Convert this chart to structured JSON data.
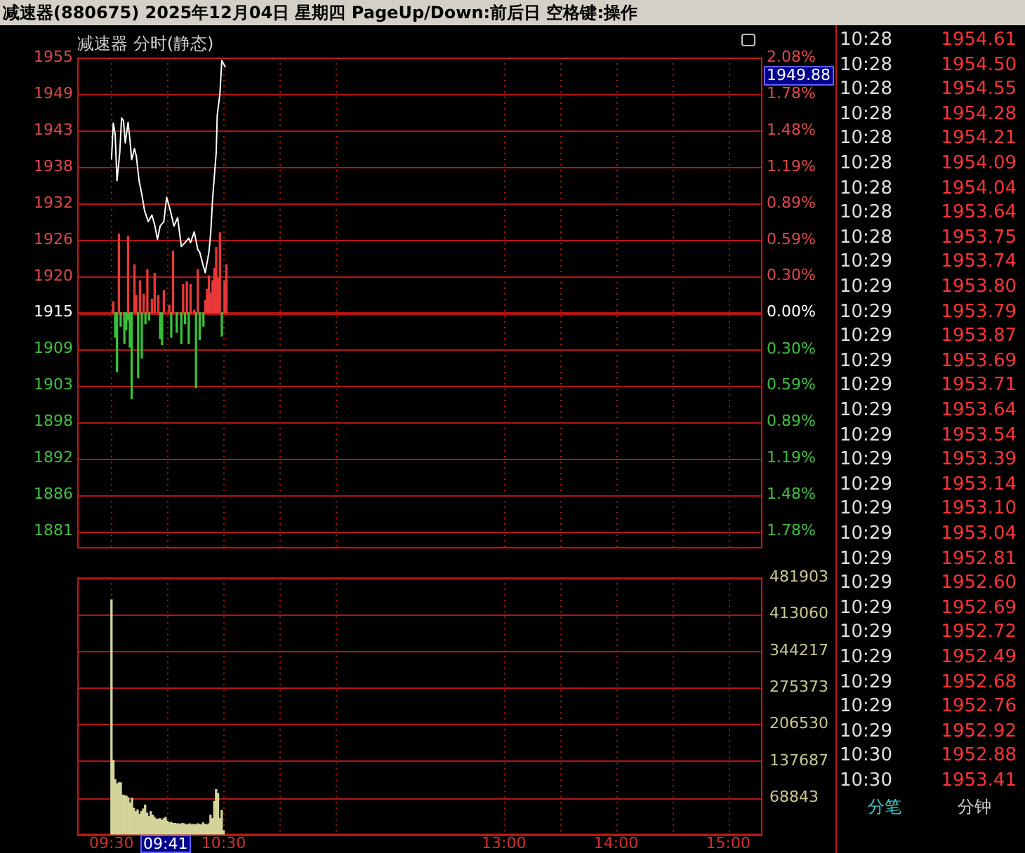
{
  "chart_data": [
    {
      "type": "line",
      "title": "减速器(880675) 2025年12月04日 星期四 PageUp/Down:前后日 空格键:操作",
      "subtitle": "减速器 分时(静态)",
      "xlim": [
        9.5,
        15
      ],
      "xticks": [
        {
          "value": 9.5,
          "label": null
        },
        {
          "value": 10,
          "label": null
        },
        {
          "value": 10.5,
          "label": null
        },
        {
          "value": 11,
          "label": null
        },
        {
          "value": 11.5,
          "label": null
        },
        {
          "value": 13,
          "label": null
        },
        {
          "value": 13.5,
          "label": null
        },
        {
          "value": 14,
          "label": null
        },
        {
          "value": 14.5,
          "label": null
        },
        {
          "value": 15,
          "label": null
        }
      ],
      "ylim": [
        1878,
        1954.65
      ],
      "yticks": [
        {
          "value": 1954.65,
          "label": "1955"
        },
        {
          "value": 1948.95,
          "label": "1949"
        },
        {
          "value": 1943.25,
          "label": "1943"
        },
        {
          "value": 1937.55,
          "label": "1938"
        },
        {
          "value": 1931.85,
          "label": "1932"
        },
        {
          "value": 1926.15,
          "label": "1926"
        },
        {
          "value": 1920.45,
          "label": "1920"
        },
        {
          "value": 1914.75,
          "label": "1915"
        },
        {
          "value": 1909.05,
          "label": "1909"
        },
        {
          "value": 1903.35,
          "label": "1903"
        },
        {
          "value": 1897.65,
          "label": "1898"
        },
        {
          "value": 1891.95,
          "label": "1892"
        },
        {
          "value": 1886.25,
          "label": "1886"
        },
        {
          "value": 1880.55,
          "label": "1881"
        }
      ],
      "y2lim": [
        -1.912,
        2.076
      ],
      "y2ticks": [
        {
          "value": 2.076,
          "label": "2.08%"
        },
        {
          "value": 1.78,
          "label": "1.78%"
        },
        {
          "value": 1.483,
          "label": "1.48%"
        },
        {
          "value": 1.186,
          "label": "1.19%"
        },
        {
          "value": 0.89,
          "label": "0.89%"
        },
        {
          "value": 0.593,
          "label": "0.59%"
        },
        {
          "value": 0.297,
          "label": "0.30%"
        },
        {
          "value": 0,
          "label": "0.00%"
        },
        {
          "value": -0.297,
          "label": "0.30%"
        },
        {
          "value": -0.593,
          "label": "0.59%"
        },
        {
          "value": -0.89,
          "label": "0.89%"
        },
        {
          "value": -1.186,
          "label": "1.19%"
        },
        {
          "value": -1.483,
          "label": "1.48%"
        },
        {
          "value": -1.78,
          "label": "1.78%"
        }
      ],
      "tick_labels": "y",
      "grid": true,
      "ref_lines": [
        {
          "axis": "y",
          "value": 1914.75,
          "color": "#b41414",
          "line_style": "solid"
        }
      ],
      "annotations": [
        "1949.88"
      ],
      "series": [
        {
          "type": "line",
          "color": "#ffffff",
          "x": [
            9.5,
            9.516,
            9.533,
            9.549,
            9.574,
            9.59,
            9.607,
            9.623,
            9.648,
            9.664,
            9.68,
            9.705,
            9.721,
            9.746,
            9.77,
            9.795,
            9.828,
            9.861,
            9.885,
            9.91,
            9.934,
            9.967,
            9.992,
            10.025,
            10.057,
            10.09,
            10.123,
            10.156,
            10.189,
            10.205,
            10.238,
            10.27,
            10.287,
            10.32,
            10.336,
            10.369,
            10.385,
            10.402,
            10.434,
            10.443,
            10.467,
            10.484,
            10.516
          ],
          "values": [
            1938.7,
            1944.4,
            1942.6,
            1935.4,
            1939.8,
            1945.2,
            1944.8,
            1941.3,
            1944.5,
            1941.9,
            1938.7,
            1940.4,
            1939.3,
            1935.4,
            1933.3,
            1930.7,
            1929.0,
            1930.0,
            1928.5,
            1926.2,
            1928.3,
            1929.0,
            1932.8,
            1930.7,
            1928.3,
            1929.6,
            1925.1,
            1925.7,
            1926.4,
            1925.7,
            1927.4,
            1924.6,
            1924.2,
            1922.0,
            1921.0,
            1924.2,
            1927.2,
            1932.6,
            1939.8,
            1945.6,
            1949.0,
            1954.2,
            1953.1
          ]
        },
        {
          "type": "bar",
          "axis": "y2",
          "color": "#e83838",
          "x": [
            9.516,
            9.566,
            9.648,
            9.705,
            9.721,
            9.754,
            9.787,
            9.82,
            9.861,
            9.885,
            9.918,
            9.967,
            10.016,
            10.049,
            10.139,
            10.172,
            10.205,
            10.238,
            10.27,
            10.336,
            10.352,
            10.369,
            10.385,
            10.402,
            10.418,
            10.434,
            10.451,
            10.467,
            10.508,
            10.525
          ],
          "values": [
            0.09,
            0.64,
            0.62,
            0.39,
            0.14,
            0.26,
            0.15,
            0.35,
            0.11,
            0.32,
            0.14,
            0.18,
            0.06,
            0.5,
            0.23,
            0.25,
            0.23,
            0.02,
            0.35,
            0.1,
            0.19,
            0.3,
            0.16,
            0.26,
            0.36,
            0.53,
            0.28,
            0.65,
            0.26,
            0.39
          ]
        },
        {
          "type": "bar",
          "axis": "y2",
          "color": "#38c038",
          "x": [
            9.533,
            9.549,
            9.582,
            9.615,
            9.631,
            9.648,
            9.664,
            9.68,
            9.738,
            9.77,
            9.803,
            9.836,
            9.934,
            9.951,
            10.033,
            10.082,
            10.123,
            10.156,
            10.189,
            10.254,
            10.287,
            10.32,
            10.484
          ],
          "values": [
            -0.2,
            -0.48,
            -0.11,
            -0.25,
            -0.14,
            -0.06,
            -0.28,
            -0.7,
            -0.53,
            -0.37,
            -0.09,
            -0.06,
            -0.21,
            -0.26,
            -0.2,
            -0.16,
            -0.25,
            -0.09,
            -0.25,
            -0.61,
            -0.22,
            -0.11,
            -0.19
          ]
        }
      ]
    },
    {
      "type": "bar",
      "color": "#d4d49a",
      "x": [
        9.5,
        9.517,
        9.533,
        9.55,
        9.567,
        9.583,
        9.6,
        9.617,
        9.633,
        9.65,
        9.667,
        9.683,
        9.7,
        9.717,
        9.733,
        9.75,
        9.767,
        9.783,
        9.8,
        9.817,
        9.833,
        9.85,
        9.867,
        9.883,
        9.9,
        9.917,
        9.933,
        9.95,
        9.967,
        9.983,
        10.0,
        10.017,
        10.033,
        10.05,
        10.067,
        10.083,
        10.1,
        10.117,
        10.133,
        10.15,
        10.167,
        10.183,
        10.2,
        10.217,
        10.233,
        10.25,
        10.267,
        10.283,
        10.3,
        10.317,
        10.333,
        10.35,
        10.367,
        10.383,
        10.4,
        10.417,
        10.433,
        10.45,
        10.467,
        10.483,
        10.5
      ],
      "values": [
        440000,
        139000,
        103000,
        95000,
        97000,
        97000,
        74000,
        73000,
        72000,
        69000,
        59000,
        68000,
        49000,
        43000,
        46000,
        38000,
        43000,
        48000,
        55000,
        40000,
        34000,
        43000,
        36000,
        32000,
        29000,
        29000,
        30000,
        27000,
        30000,
        32000,
        25000,
        22000,
        23000,
        21000,
        21000,
        20000,
        20000,
        19000,
        21000,
        20000,
        18000,
        19000,
        20000,
        18000,
        19000,
        18000,
        20000,
        19000,
        18000,
        22000,
        19000,
        18000,
        20000,
        36000,
        30000,
        62000,
        84000,
        77000,
        30000,
        45000,
        7000
      ],
      "xlim": [
        9.5,
        15
      ],
      "xticks": [
        {
          "value": 9.5,
          "label": "09:30"
        },
        {
          "value": 10,
          "label": null
        },
        {
          "value": 10.5,
          "label": "10:30"
        },
        {
          "value": 11,
          "label": null
        },
        {
          "value": 11.5,
          "label": null
        },
        {
          "value": 13,
          "label": "13:00"
        },
        {
          "value": 13.5,
          "label": null
        },
        {
          "value": 14,
          "label": "14:00"
        },
        {
          "value": 14.5,
          "label": null
        },
        {
          "value": 15,
          "label": "15:00"
        }
      ],
      "ylim": [
        0,
        481903
      ],
      "yticks": [
        {
          "value": 0,
          "label": null
        },
        68843,
        137687,
        206530,
        275373,
        344217,
        413060,
        481903
      ],
      "grid": true,
      "annotations": [
        "09:41"
      ]
    },
    {
      "type": "other",
      "categories": [
        "10:28",
        "10:28",
        "10:28",
        "10:28",
        "10:28",
        "10:28",
        "10:28",
        "10:28",
        "10:28",
        "10:29",
        "10:29",
        "10:29",
        "10:29",
        "10:29",
        "10:29",
        "10:29",
        "10:29",
        "10:29",
        "10:29",
        "10:29",
        "10:29",
        "10:29",
        "10:29",
        "10:29",
        "10:29",
        "10:29",
        "10:29",
        "10:29",
        "10:29",
        "10:30",
        "10:30"
      ],
      "values": [
        1954.61,
        1954.5,
        1954.55,
        1954.28,
        1954.21,
        1954.09,
        1954.04,
        1953.64,
        1953.75,
        1953.74,
        1953.8,
        1953.79,
        1953.87,
        1953.69,
        1953.71,
        1953.64,
        1953.54,
        1953.39,
        1953.14,
        1953.1,
        1953.04,
        1952.81,
        1952.6,
        1952.69,
        1952.72,
        1952.49,
        1952.68,
        1952.76,
        1952.92,
        1952.88,
        1953.41
      ],
      "value_labels": [
        "1954.61",
        "1954.50",
        "1954.55",
        "1954.28",
        "1954.21",
        "1954.09",
        "1954.04",
        "1953.64",
        "1953.75",
        "1953.74",
        "1953.80",
        "1953.79",
        "1953.87",
        "1953.69",
        "1953.71",
        "1953.64",
        "1953.54",
        "1953.39",
        "1953.14",
        "1953.10",
        "1953.04",
        "1952.81",
        "1952.60",
        "1952.69",
        "1952.72",
        "1952.49",
        "1952.68",
        "1952.76",
        "1952.92",
        "1952.88",
        "1953.41"
      ],
      "annotations": [
        "分笔",
        "分钟"
      ]
    }
  ]
}
